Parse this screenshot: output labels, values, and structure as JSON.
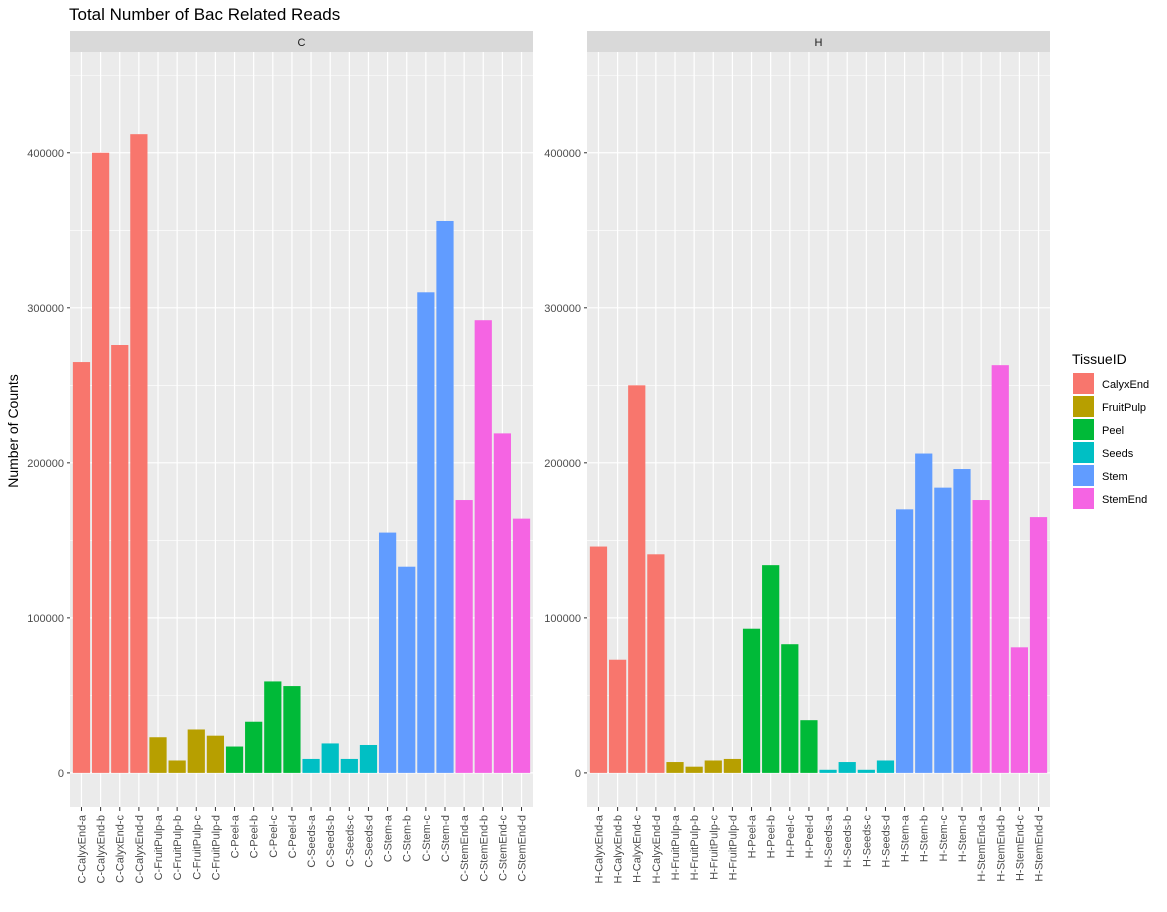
{
  "chart_data": {
    "type": "bar",
    "title": "Total Number of Bac Related Reads",
    "ylabel": "Number of Counts",
    "xlabel": "",
    "ylim": [
      -22000,
      465000
    ],
    "yticks": [
      0,
      100000,
      200000,
      300000,
      400000
    ],
    "ytick_labels": [
      "0",
      "100000",
      "200000",
      "300000",
      "400000"
    ],
    "grid": true,
    "legend": {
      "title": "TissueID",
      "position": "right",
      "entries": [
        {
          "name": "CalyxEnd",
          "color": "#F8766D"
        },
        {
          "name": "FruitPulp",
          "color": "#B79F00"
        },
        {
          "name": "Peel",
          "color": "#00BA38"
        },
        {
          "name": "Seeds",
          "color": "#00BFC4"
        },
        {
          "name": "Stem",
          "color": "#619CFF"
        },
        {
          "name": "StemEnd",
          "color": "#F564E3"
        }
      ]
    },
    "panels": [
      {
        "strip": "C",
        "categories": [
          "C-CalyxEnd-a",
          "C-CalyxEnd-b",
          "C-CalyxEnd-c",
          "C-CalyxEnd-d",
          "C-FruitPulp-a",
          "C-FruitPulp-b",
          "C-FruitPulp-c",
          "C-FruitPulp-d",
          "C-Peel-a",
          "C-Peel-b",
          "C-Peel-c",
          "C-Peel-d",
          "C-Seeds-a",
          "C-Seeds-b",
          "C-Seeds-c",
          "C-Seeds-d",
          "C-Stem-a",
          "C-Stem-b",
          "C-Stem-c",
          "C-Stem-d",
          "C-StemEnd-a",
          "C-StemEnd-b",
          "C-StemEnd-c",
          "C-StemEnd-d"
        ],
        "values": [
          265000,
          400000,
          276000,
          412000,
          23000,
          8000,
          28000,
          24000,
          17000,
          33000,
          59000,
          56000,
          9000,
          19000,
          9000,
          18000,
          155000,
          133000,
          310000,
          356000,
          176000,
          292000,
          219000,
          164000
        ],
        "groups": [
          "CalyxEnd",
          "CalyxEnd",
          "CalyxEnd",
          "CalyxEnd",
          "FruitPulp",
          "FruitPulp",
          "FruitPulp",
          "FruitPulp",
          "Peel",
          "Peel",
          "Peel",
          "Peel",
          "Seeds",
          "Seeds",
          "Seeds",
          "Seeds",
          "Stem",
          "Stem",
          "Stem",
          "Stem",
          "StemEnd",
          "StemEnd",
          "StemEnd",
          "StemEnd"
        ]
      },
      {
        "strip": "H",
        "categories": [
          "H-CalyxEnd-a",
          "H-CalyxEnd-b",
          "H-CalyxEnd-c",
          "H-CalyxEnd-d",
          "H-FruitPulp-a",
          "H-FruitPulp-b",
          "H-FruitPulp-c",
          "H-FruitPulp-d",
          "H-Peel-a",
          "H-Peel-b",
          "H-Peel-c",
          "H-Peel-d",
          "H-Seeds-a",
          "H-Seeds-b",
          "H-Seeds-c",
          "H-Seeds-d",
          "H-Stem-a",
          "H-Stem-b",
          "H-Stem-c",
          "H-Stem-d",
          "H-StemEnd-a",
          "H-StemEnd-b",
          "H-StemEnd-c",
          "H-StemEnd-d"
        ],
        "values": [
          146000,
          73000,
          250000,
          141000,
          7000,
          4000,
          8000,
          9000,
          93000,
          134000,
          83000,
          34000,
          2000,
          7000,
          2000,
          8000,
          170000,
          206000,
          184000,
          196000,
          176000,
          263000,
          81000,
          165000
        ],
        "groups": [
          "CalyxEnd",
          "CalyxEnd",
          "CalyxEnd",
          "CalyxEnd",
          "FruitPulp",
          "FruitPulp",
          "FruitPulp",
          "FruitPulp",
          "Peel",
          "Peel",
          "Peel",
          "Peel",
          "Seeds",
          "Seeds",
          "Seeds",
          "Seeds",
          "Stem",
          "Stem",
          "Stem",
          "Stem",
          "StemEnd",
          "StemEnd",
          "StemEnd",
          "StemEnd"
        ]
      }
    ]
  }
}
